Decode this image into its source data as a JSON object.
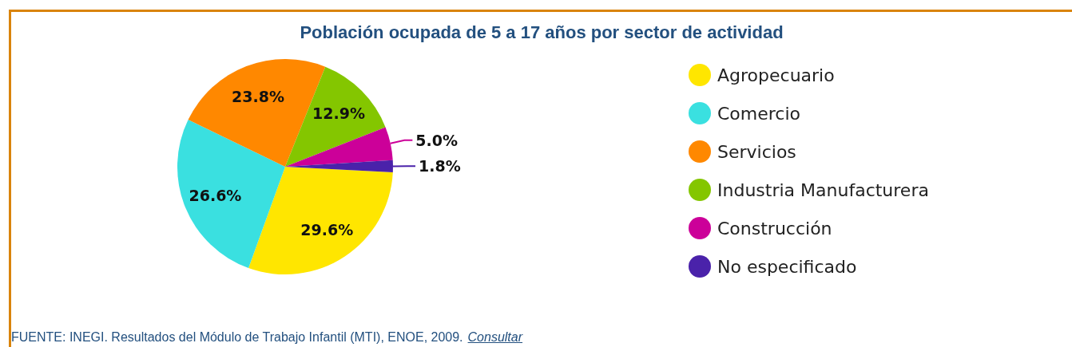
{
  "chart_data": {
    "type": "pie",
    "title": "Población ocupada de 5 a 17 años por sector de actividad",
    "categories": [
      "Agropecuario",
      "Comercio",
      "Servicios",
      "Industria Manufacturera",
      "Construcción",
      "No especificado"
    ],
    "values": [
      29.6,
      26.6,
      23.8,
      12.9,
      5.0,
      1.8
    ],
    "colors": [
      "#ffe600",
      "#3ae0e0",
      "#ff8800",
      "#84c600",
      "#cc0099",
      "#4a22aa"
    ],
    "value_labels": [
      "29.6%",
      "26.6%",
      "23.8%",
      "12.9%",
      "5.0%",
      "1.8%"
    ],
    "legend": "right",
    "annotations": [
      "FUENTE: INEGI. Resultados del Módulo de Trabajo Infantil (MTI), ENOE, 2009.",
      "Consultar"
    ]
  }
}
